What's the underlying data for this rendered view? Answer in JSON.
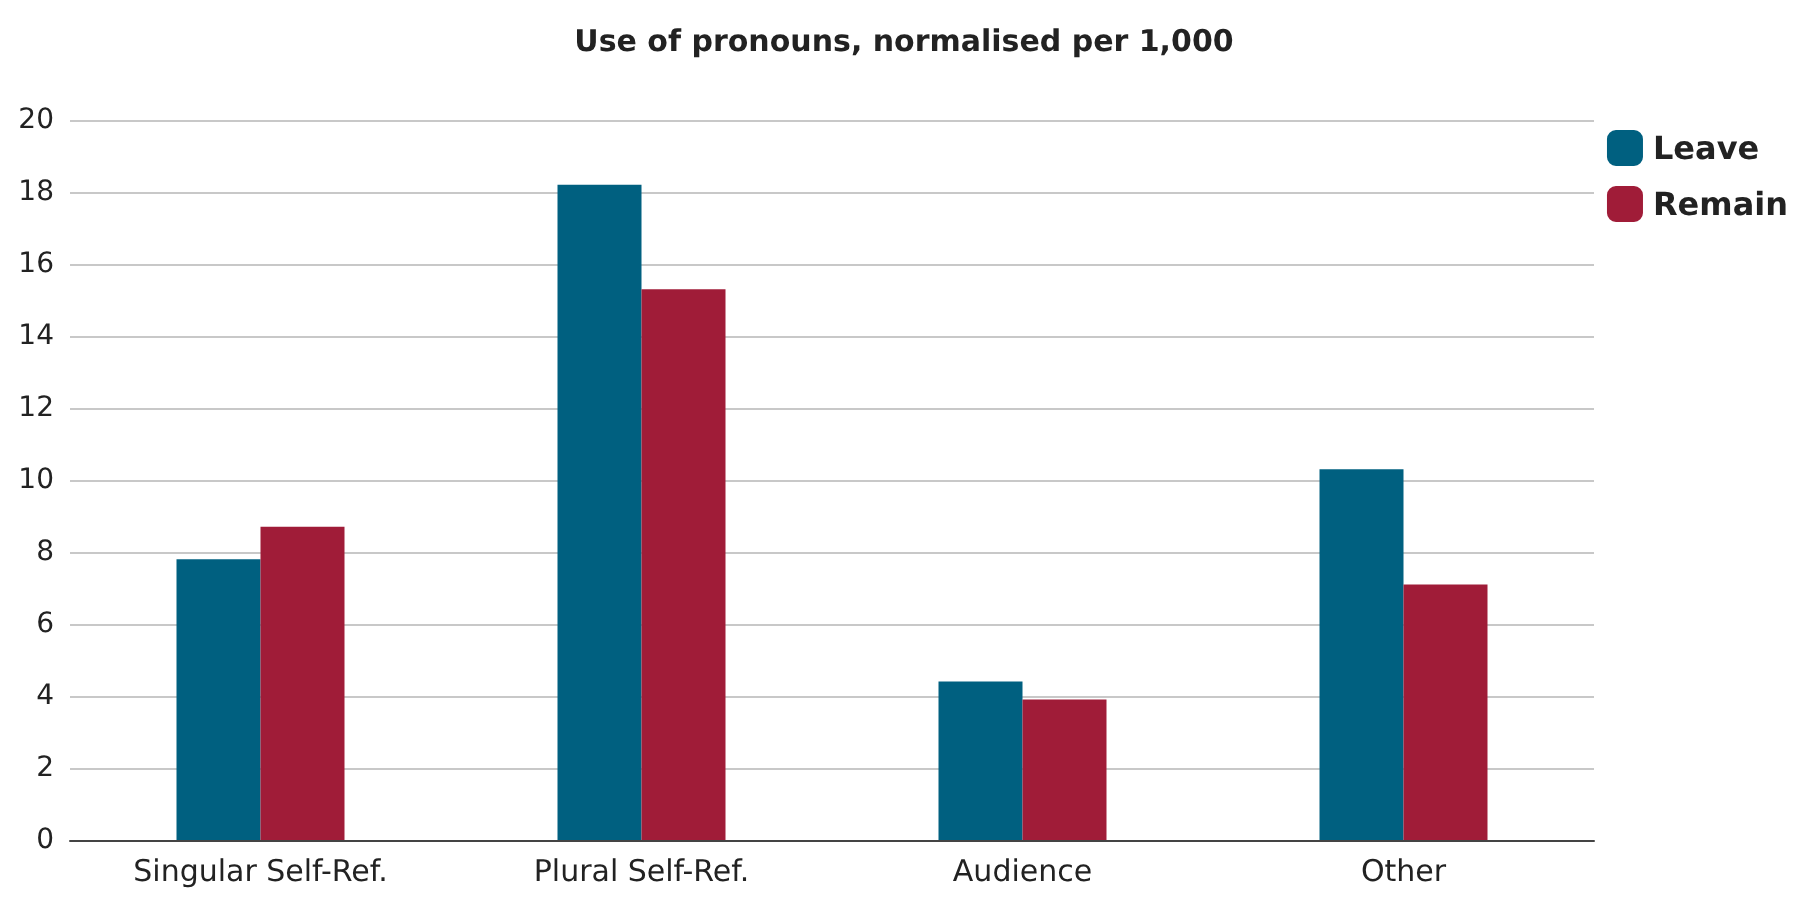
{
  "chart_data": {
    "type": "bar",
    "title": "Use of pronouns, normalised per 1,000",
    "categories": [
      "Singular Self-Ref.",
      "Plural Self-Ref.",
      "Audience",
      "Other"
    ],
    "series": [
      {
        "name": "Leave",
        "color": "#006080",
        "values": [
          7.8,
          18.2,
          4.4,
          10.3
        ]
      },
      {
        "name": "Remain",
        "color": "#a01c38",
        "values": [
          8.7,
          15.3,
          3.9,
          7.1
        ]
      }
    ],
    "ylim": [
      0,
      20
    ],
    "yticks": [
      0,
      2,
      4,
      6,
      8,
      10,
      12,
      14,
      16,
      18,
      20
    ],
    "grid": "y",
    "legend": "top right"
  }
}
